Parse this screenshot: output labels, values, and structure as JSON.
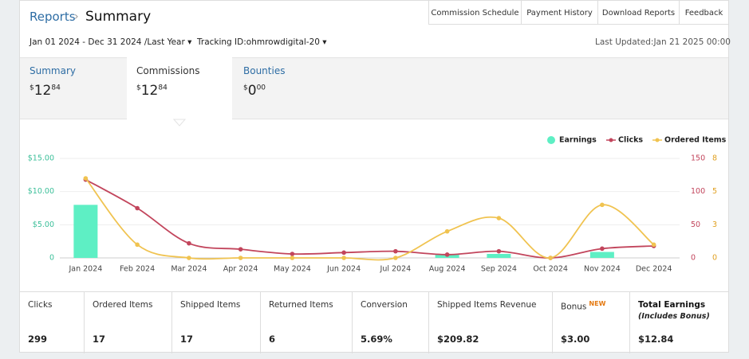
{
  "header": {
    "breadcrumb": "Reports",
    "title": "Summary",
    "links": [
      "Commission Schedule",
      "Payment History",
      "Download Reports",
      "Feedback"
    ]
  },
  "filters": {
    "date_range": "Jan 01 2024 - Dec 31 2024 /Last Year",
    "tracking": "Tracking ID:ohmrowdigital-20",
    "last_updated": "Last Updated:Jan 21 2025 00:00"
  },
  "tabs": [
    {
      "label": "Summary",
      "currency": "$",
      "whole": "12",
      "cents": "84"
    },
    {
      "label": "Commissions",
      "currency": "$",
      "whole": "12",
      "cents": "84"
    },
    {
      "label": "Bounties",
      "currency": "$",
      "whole": "0",
      "cents": "00"
    }
  ],
  "chart_data": {
    "type": "line",
    "categories": [
      "Jan 2024",
      "Feb 2024",
      "Mar 2024",
      "Apr 2024",
      "May 2024",
      "Jun 2024",
      "Jul 2024",
      "Aug 2024",
      "Sep 2024",
      "Oct 2024",
      "Nov 2024",
      "Dec 2024"
    ],
    "series": [
      {
        "name": "Earnings",
        "type": "bar",
        "axis": "y",
        "color": "#5eefc4",
        "values": [
          8,
          0,
          0,
          0,
          0,
          0,
          0,
          0.5,
          0.6,
          0,
          0.9,
          0
        ]
      },
      {
        "name": "Clicks",
        "type": "line",
        "axis": "y2",
        "color": "#c2455c",
        "values": [
          118,
          75,
          22,
          13,
          6,
          8,
          10,
          5,
          10,
          0,
          14,
          18
        ]
      },
      {
        "name": "Ordered Items",
        "type": "line",
        "axis": "y3",
        "color": "#f0c350",
        "values": [
          6,
          1,
          0,
          0,
          0,
          0,
          0,
          2,
          3,
          0,
          4,
          1
        ]
      }
    ],
    "ylim": [
      0,
      15
    ],
    "yticks": [
      {
        "value": 0,
        "label": "0"
      },
      {
        "value": 5,
        "label": "$5.00"
      },
      {
        "value": 10,
        "label": "$10.00"
      },
      {
        "value": 15,
        "label": "$15.00"
      }
    ],
    "y2lim": [
      0,
      150
    ],
    "y2ticks": [
      0,
      50,
      100,
      150
    ],
    "y3lim": [
      0,
      7.5
    ],
    "y3ticks": [
      0,
      {
        "value": 2.5,
        "label": "3"
      },
      5,
      {
        "value": 7.5,
        "label": "8"
      }
    ],
    "grid": true
  },
  "stats": [
    {
      "label": "Clicks",
      "value": "299"
    },
    {
      "label": "Ordered Items",
      "value": "17"
    },
    {
      "label": "Shipped Items",
      "value": "17"
    },
    {
      "label": "Returned Items",
      "value": "6"
    },
    {
      "label": "Conversion",
      "value": "5.69%"
    },
    {
      "label": "Shipped Items Revenue",
      "value": "$209.82"
    },
    {
      "label": "Bonus",
      "badge": "NEW",
      "value": "$3.00"
    },
    {
      "label": "Total Earnings",
      "note": "(Includes Bonus)",
      "value": "$12.84"
    }
  ]
}
